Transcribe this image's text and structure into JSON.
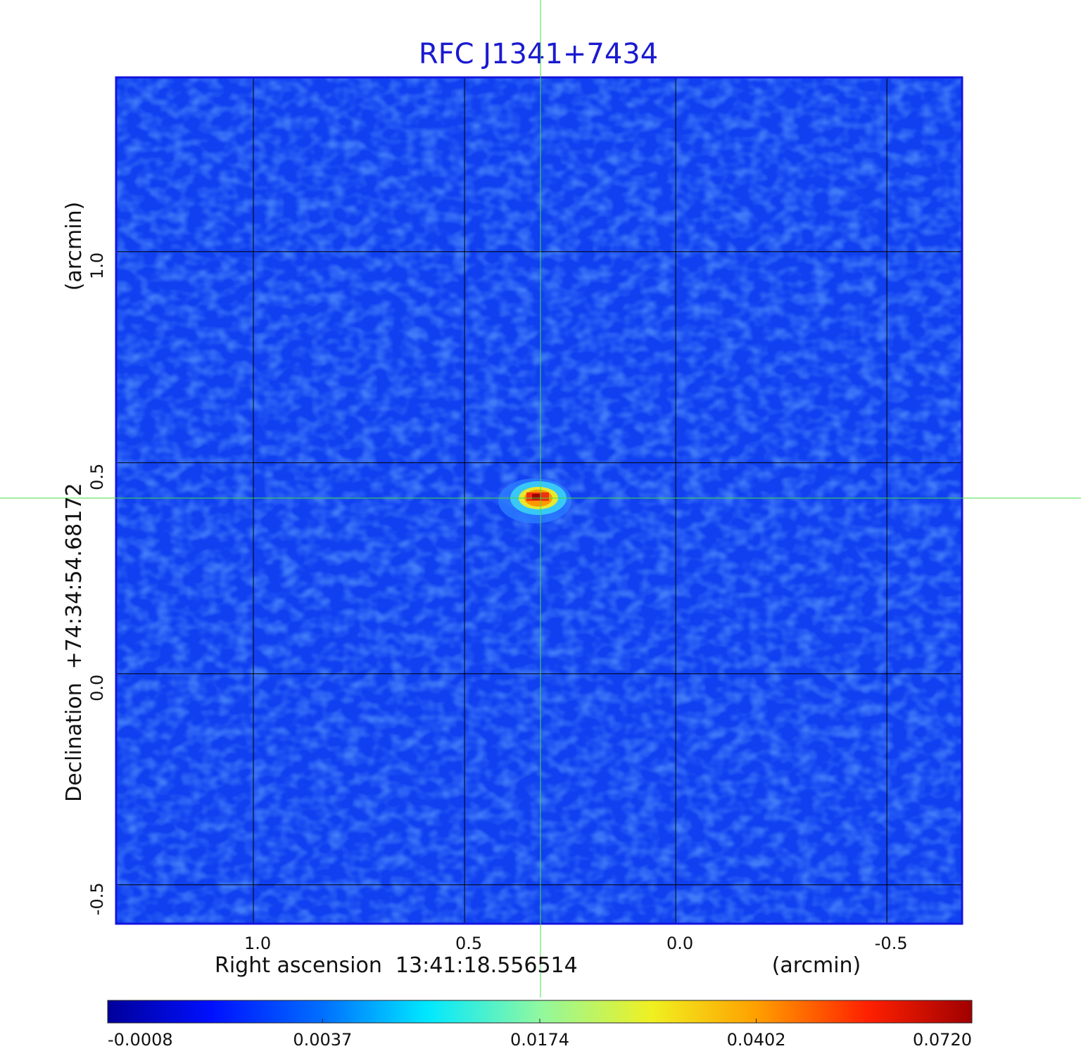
{
  "chart_data": {
    "type": "image",
    "title": "RFC J1341+7434",
    "x_label": "Right ascension  13:41:18.556514",
    "x_unit": "(arcmin)",
    "y_label": "Declination  +74:34:54.68172",
    "y_unit": "(arcmin)",
    "xlim": [
      1.325,
      -0.678
    ],
    "ylim": [
      -0.592,
      1.413
    ],
    "xticks": [
      {
        "value": 1,
        "label": "1.0"
      },
      {
        "value": 0.5,
        "label": "0.5"
      },
      {
        "value": 0,
        "label": "0.0"
      },
      {
        "value": -0.5,
        "label": "-0.5"
      }
    ],
    "yticks": [
      {
        "value": 1,
        "label": "1.0"
      },
      {
        "value": 0.5,
        "label": "0.5"
      },
      {
        "value": 0,
        "label": "0.0"
      },
      {
        "value": -0.5,
        "label": "-0.5"
      }
    ],
    "grid": true,
    "colorbar": {
      "scale": "sqrt",
      "lim": [
        -0.0008,
        0.072
      ],
      "ticks": [
        -0.0008,
        0.0037,
        0.0174,
        0.0402,
        {
          "value": 0.072,
          "label": "0.0720"
        }
      ]
    }
  }
}
